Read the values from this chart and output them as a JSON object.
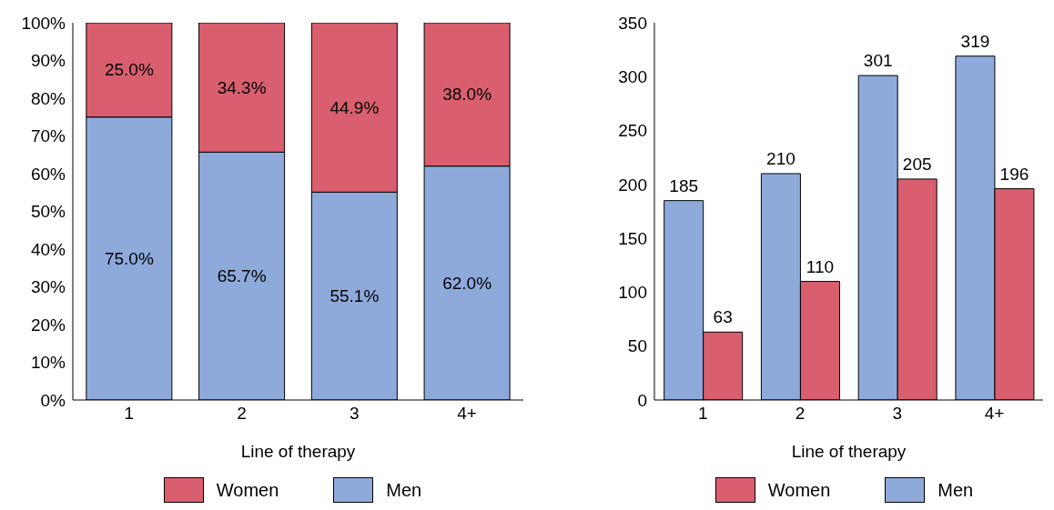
{
  "chart_data": [
    {
      "type": "bar",
      "stacked": true,
      "xlabel": "Line of therapy",
      "categories": [
        "1",
        "2",
        "3",
        "4+"
      ],
      "ylim": [
        0,
        100
      ],
      "yticks": [
        {
          "value": 0,
          "label": "0%"
        },
        {
          "value": 10,
          "label": "10%"
        },
        {
          "value": 20,
          "label": "20%"
        },
        {
          "value": 30,
          "label": "30%"
        },
        {
          "value": 40,
          "label": "40%"
        },
        {
          "value": 50,
          "label": "50%"
        },
        {
          "value": 60,
          "label": "60%"
        },
        {
          "value": 70,
          "label": "70%"
        },
        {
          "value": 80,
          "label": "80%"
        },
        {
          "value": 90,
          "label": "90%"
        },
        {
          "value": 100,
          "label": "100%"
        }
      ],
      "series": [
        {
          "name": "Men",
          "color": "#8eaadb",
          "values": [
            75.0,
            65.7,
            55.1,
            62.0
          ],
          "value_labels": [
            "75.0%",
            "65.7%",
            "55.1%",
            "62.0%"
          ]
        },
        {
          "name": "Women",
          "color": "#d95f6e",
          "values": [
            25.0,
            34.3,
            44.9,
            38.0
          ],
          "value_labels": [
            "25.0%",
            "34.3%",
            "44.9%",
            "38.0%"
          ]
        }
      ],
      "legend": "bottom",
      "grid": false
    },
    {
      "type": "bar",
      "xlabel": "Line of therapy",
      "categories": [
        "1",
        "2",
        "3",
        "4+"
      ],
      "ylim": [
        0,
        350
      ],
      "yticks": [
        0,
        50,
        100,
        150,
        200,
        250,
        300,
        350
      ],
      "series": [
        {
          "name": "Men",
          "color": "#8eaadb",
          "values": [
            185,
            210,
            301,
            319
          ]
        },
        {
          "name": "Women",
          "color": "#d95f6e",
          "values": [
            63,
            110,
            205,
            196
          ]
        }
      ],
      "data_labels": true,
      "legend": "bottom",
      "grid": false
    }
  ]
}
